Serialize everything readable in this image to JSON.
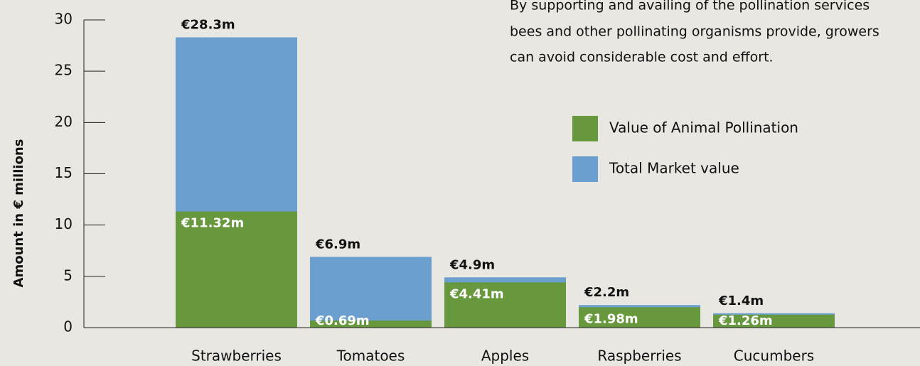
{
  "chart_data": {
    "type": "bar",
    "overlap": true,
    "y_label": "Amount in € millions",
    "annotation": [
      "By supporting and availing of the pollination services",
      "bees and other pollinating organisms provide, growers",
      "can avoid considerable cost and effort."
    ],
    "categories": [
      "Strawberries",
      "Tomatoes",
      "Apples",
      "Raspberries",
      "Cucumbers"
    ],
    "series": [
      {
        "name": "Value of Animal Pollination",
        "color": "#67983d",
        "values": [
          11.32,
          0.69,
          4.41,
          1.98,
          1.26
        ],
        "value_labels": [
          "€11.32m",
          "€0.69m",
          "€4.41m",
          "€1.98m",
          "€1.26m"
        ]
      },
      {
        "name": "Total Market value",
        "color": "#6a9fcf",
        "values": [
          28.3,
          6.9,
          4.9,
          2.2,
          1.4
        ],
        "value_labels": [
          "€28.3m",
          "€6.9m",
          "€4.9m",
          "€2.2m",
          "€1.4m"
        ]
      }
    ],
    "ylim": [
      0,
      30
    ],
    "yticks": [
      0,
      5,
      10,
      15,
      20,
      25,
      30
    ]
  }
}
